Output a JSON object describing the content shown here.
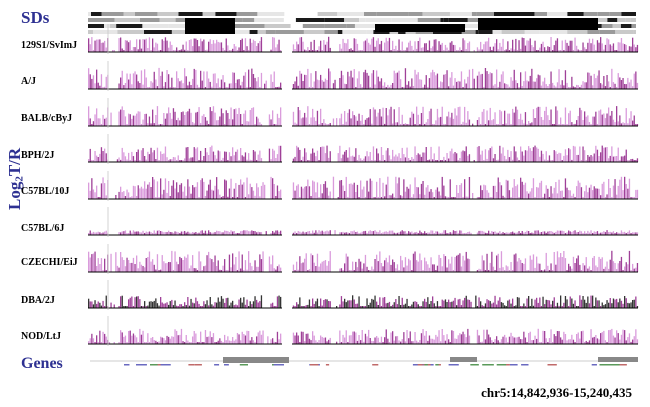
{
  "labels": {
    "sds": "SDs",
    "genes": "Genes",
    "ylabel_main": "Log",
    "ylabel_sub": "2",
    "ylabel_tail": "T/R",
    "coordinates": "chr5:14,842,936-15,240,435"
  },
  "strains": [
    "129S1/SvImJ",
    "A/J",
    "BALB/cByJ",
    "BPH/2J",
    "C57BL/10J",
    "C57BL/6J",
    "CZECHI/EiJ",
    "DBA/2J",
    "NOD/LtJ"
  ],
  "colors": {
    "label_blue": "#2e3192",
    "pink": "#d48bd6",
    "purple": "#8e1f86",
    "blue": "#4b57b8",
    "orange": "#f0a04b",
    "black": "#111111",
    "baseline": "#000000",
    "gene_bar": "#888888"
  }
}
